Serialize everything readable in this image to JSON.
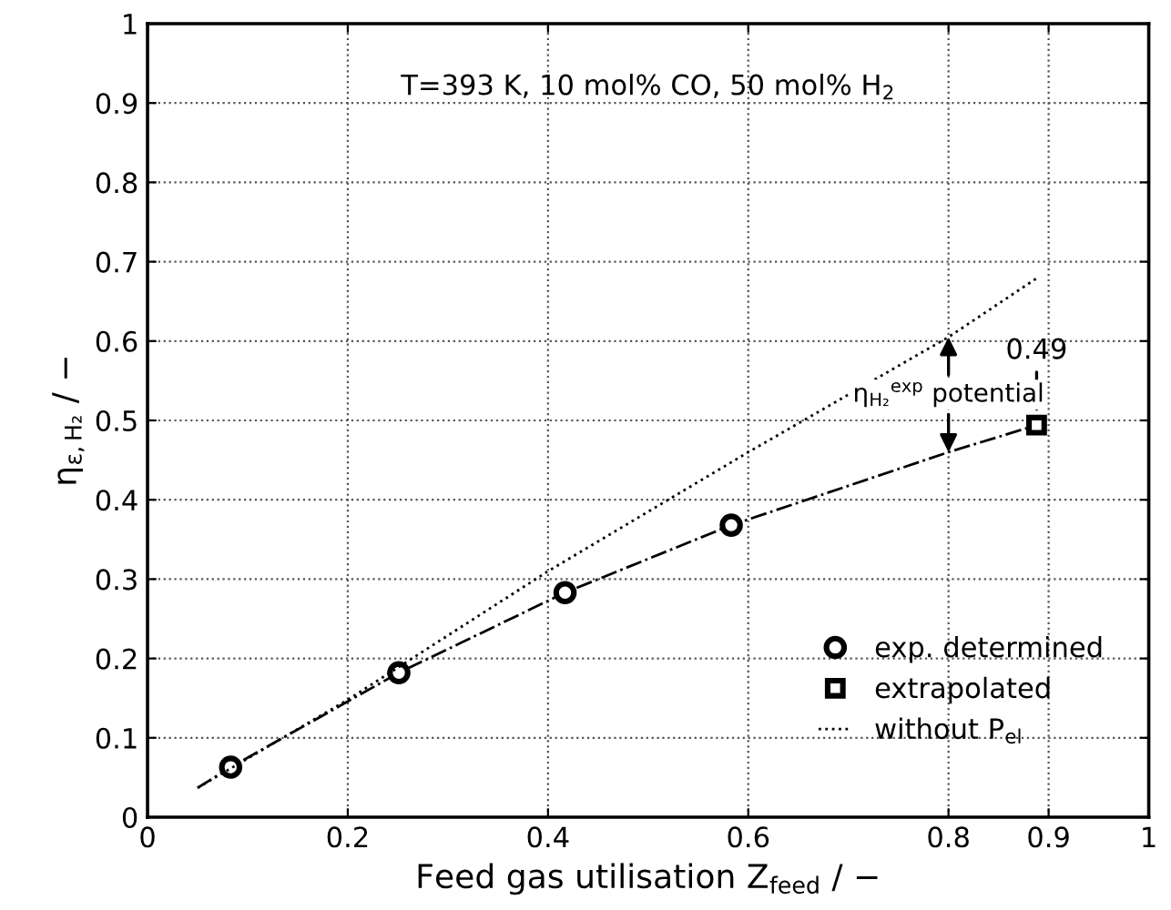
{
  "chart_data": {
    "type": "line",
    "xlabel": "Feed gas utilisation Z$_{feed}$ / −",
    "ylabel": "η$_{ε,H₂}$ / −",
    "xlim": [
      0,
      1
    ],
    "ylim": [
      0,
      1
    ],
    "xticks": [
      0,
      0.2,
      0.4,
      0.6,
      0.8,
      0.9,
      1
    ],
    "yticks": [
      0,
      0.1,
      0.2,
      0.3,
      0.4,
      0.5,
      0.6,
      0.7,
      0.8,
      0.9,
      1
    ],
    "grid": true,
    "legend": "bottom right",
    "series": [
      {
        "color": "#000000",
        "line_style": "dashdot",
        "marker": "none",
        "x": [
          0.05,
          0.083,
          0.251,
          0.417,
          0.583,
          0.8,
          0.888
        ],
        "values": [
          0.037,
          0.063,
          0.182,
          0.283,
          0.368,
          0.46,
          0.494
        ]
      },
      {
        "type": "scatter",
        "name": "exp. determined",
        "color": "#000000",
        "marker": "circle",
        "x": [
          0.083,
          0.251,
          0.417,
          0.583
        ],
        "values": [
          0.063,
          0.182,
          0.283,
          0.368
        ]
      },
      {
        "type": "scatter",
        "name": "extrapolated",
        "color": "#000000",
        "marker": "square",
        "x": [
          0.888
        ],
        "values": [
          0.494
        ]
      },
      {
        "name": "without P$_{el}$",
        "color": "#000000",
        "line_style": "dotted",
        "marker": "none",
        "x": [
          0.05,
          0.2,
          0.4,
          0.6,
          0.8,
          0.889
        ],
        "values": [
          0.037,
          0.148,
          0.31,
          0.46,
          0.605,
          0.68
        ]
      }
    ],
    "annotations": [
      "T=393 K, 10 mol% CO, 50 mol% H$_{2}$",
      {
        "text": "0.49",
        "x": 0.888,
        "y": 0.494
      },
      {
        "text": "η$_{H₂}$$^{exp}$ potential",
        "x": 0.8,
        "y": 0.46
      }
    ]
  }
}
